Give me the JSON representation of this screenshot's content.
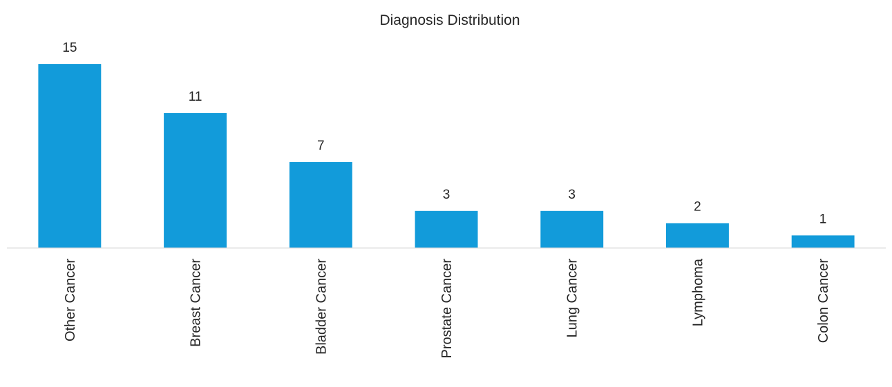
{
  "chart_data": {
    "type": "bar",
    "title": "Diagnosis Distribution",
    "xlabel": "",
    "ylabel": "",
    "categories": [
      "Other Cancer",
      "Breast Cancer",
      "Bladder Cancer",
      "Prostate Cancer",
      "Lung Cancer",
      "Lymphoma",
      "Colon Cancer"
    ],
    "values": [
      15,
      11,
      7,
      3,
      3,
      2,
      1
    ],
    "data_labels": [
      "15",
      "11",
      "7",
      "3",
      "3",
      "2",
      "1"
    ],
    "ylim": [
      0,
      15
    ],
    "grid": false,
    "legend": "none",
    "bar_color": "#129BDA",
    "axis_color": "#D9D9D9",
    "text_color": "#262626"
  }
}
